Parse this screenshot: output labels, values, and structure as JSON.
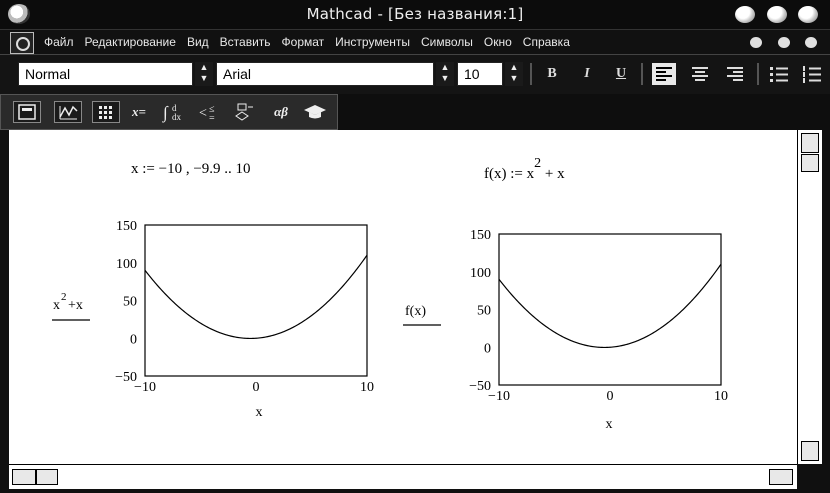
{
  "window": {
    "title": "Mathcad - [Без названия:1]"
  },
  "menu": {
    "items": [
      "Файл",
      "Редактирование",
      "Вид",
      "Вставить",
      "Формат",
      "Инструменты",
      "Символы",
      "Окно",
      "Справка"
    ]
  },
  "toolbar": {
    "style": "Normal",
    "font": "Arial",
    "size": "10",
    "bold": "B",
    "italic": "I",
    "underline": "U",
    "align_left_pressed": true
  },
  "math_toolbar": {
    "eval_label": "x=",
    "greek_label": "αβ"
  },
  "worksheet": {
    "range_def": "x := −10 , −9.9 .. 10",
    "func_def_left": "f(x) := x",
    "func_def_exp": "2",
    "func_def_right": " + x"
  },
  "chart_data": [
    {
      "type": "line",
      "xlabel": "x",
      "ylabel_base": "x",
      "ylabel_exp": "2",
      "ylabel_rest": "+x",
      "xlim": [
        -10,
        10
      ],
      "ylim": [
        -50,
        150
      ],
      "x_ticks": [
        "−10",
        "0",
        "10"
      ],
      "y_ticks": [
        "150",
        "100",
        "50",
        "0",
        "−50"
      ],
      "function": "x^2 + x",
      "series": [
        {
          "x_range": [
            -10,
            10
          ],
          "step": 0.1
        }
      ]
    },
    {
      "type": "line",
      "xlabel": "x",
      "ylabel": "f(x)",
      "xlim": [
        -10,
        10
      ],
      "ylim": [
        -50,
        150
      ],
      "x_ticks": [
        "−10",
        "0",
        "10"
      ],
      "y_ticks": [
        "150",
        "100",
        "50",
        "0",
        "−50"
      ],
      "function": "x^2 + x",
      "series": [
        {
          "x_range": [
            -10,
            10
          ],
          "step": 0.1
        }
      ]
    }
  ]
}
